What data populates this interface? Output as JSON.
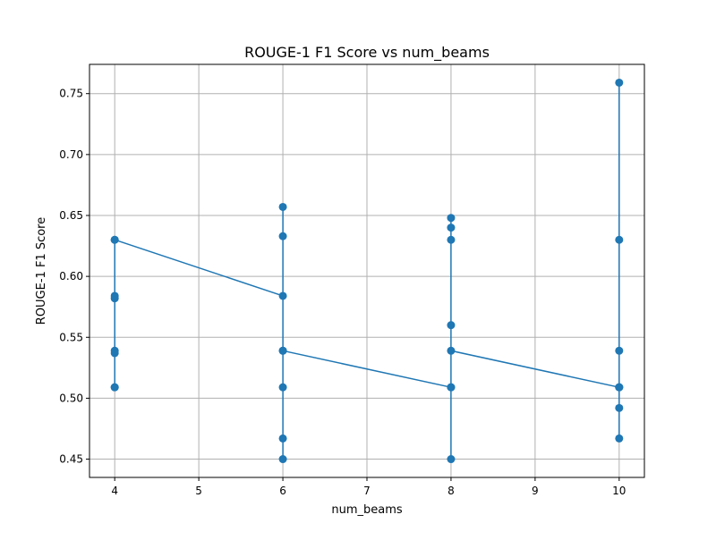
{
  "chart_data": {
    "type": "line",
    "title": "ROUGE-1 F1 Score vs num_beams",
    "xlabel": "num_beams",
    "ylabel": "ROUGE-1 F1 Score",
    "xlim": [
      3.7,
      10.3
    ],
    "ylim": [
      0.435,
      0.774
    ],
    "xticks": [
      4,
      5,
      6,
      7,
      8,
      9,
      10
    ],
    "yticks": [
      0.45,
      0.5,
      0.55,
      0.6,
      0.65,
      0.7,
      0.75
    ],
    "xtick_labels": [
      "4",
      "5",
      "6",
      "7",
      "8",
      "9",
      "10"
    ],
    "ytick_labels": [
      "0.45",
      "0.50",
      "0.55",
      "0.60",
      "0.65",
      "0.70",
      "0.75"
    ],
    "grid": true,
    "color": "#1f77b4",
    "series": [
      {
        "x": [
          4,
          4,
          4,
          4,
          4,
          4,
          4,
          4,
          6,
          6,
          6,
          6,
          6,
          6,
          6,
          6,
          8,
          8,
          8,
          8,
          8,
          8,
          8,
          8,
          10,
          10,
          10,
          10,
          10,
          10,
          10,
          10
        ],
        "y": [
          0.509,
          0.63,
          0.537,
          0.539,
          0.582,
          0.584,
          0.509,
          0.63,
          0.584,
          0.539,
          0.509,
          0.467,
          0.45,
          0.633,
          0.657,
          0.539,
          0.509,
          0.45,
          0.509,
          0.56,
          0.63,
          0.64,
          0.648,
          0.539,
          0.509,
          0.467,
          0.492,
          0.509,
          0.539,
          0.63,
          0.759,
          0.509
        ]
      }
    ]
  }
}
